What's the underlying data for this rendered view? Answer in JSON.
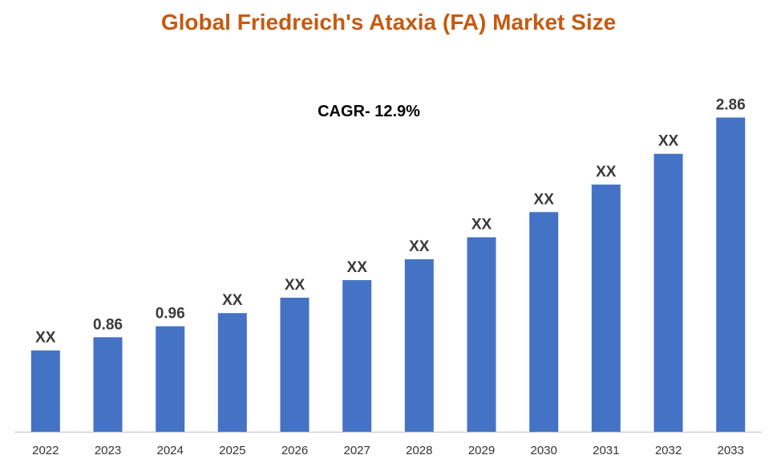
{
  "colors": {
    "title": "#C55A11",
    "bar": "#4472C4",
    "axis": "#BFBFBF"
  },
  "chart_data": {
    "type": "bar",
    "title": "Global Friedreich's Ataxia (FA) Market Size",
    "annotation": "CAGR- 12.9%",
    "xlabel": "",
    "ylabel": "",
    "categories": [
      "2022",
      "2023",
      "2024",
      "2025",
      "2026",
      "2027",
      "2028",
      "2029",
      "2030",
      "2031",
      "2032",
      "2033"
    ],
    "values": [
      0.74,
      0.86,
      0.96,
      1.08,
      1.22,
      1.38,
      1.57,
      1.77,
      2.0,
      2.25,
      2.53,
      2.86
    ],
    "data_labels": [
      "XX",
      "0.86",
      "0.96",
      "XX",
      "XX",
      "XX",
      "XX",
      "XX",
      "XX",
      "XX",
      "XX",
      "2.86"
    ],
    "ylim": [
      0,
      3.2
    ],
    "grid": false,
    "legend": "none"
  }
}
